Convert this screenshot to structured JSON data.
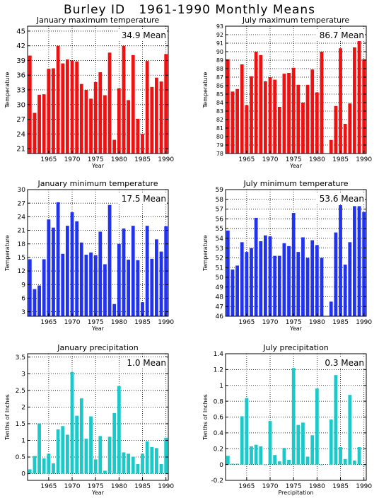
{
  "page_title": "Burley ID   1961-1990 Monthly Means",
  "chart_data": [
    {
      "type": "bar",
      "title": "January maximum temperature",
      "ylabel": "Temperature",
      "xlabel": "Year",
      "mean_label": "34.9 Mean",
      "color": "#ee1111",
      "ylim": [
        20,
        46
      ],
      "yticks": [
        21,
        24,
        27,
        30,
        33,
        36,
        39,
        42,
        45
      ],
      "xticks": [
        1965,
        1970,
        1975,
        1980,
        1985,
        1990
      ],
      "x": [
        1961,
        1962,
        1963,
        1964,
        1965,
        1966,
        1967,
        1968,
        1969,
        1970,
        1971,
        1972,
        1973,
        1974,
        1975,
        1976,
        1977,
        1978,
        1979,
        1980,
        1981,
        1982,
        1983,
        1984,
        1985,
        1986,
        1987,
        1988,
        1989,
        1990
      ],
      "values": [
        40.0,
        28.3,
        32.0,
        32.1,
        37.3,
        37.4,
        42.0,
        38.4,
        39.2,
        39.0,
        38.8,
        34.2,
        33.0,
        31.2,
        34.6,
        36.6,
        31.9,
        40.6,
        22.8,
        33.3,
        42.0,
        30.9,
        40.1,
        27.1,
        24.0,
        38.9,
        33.6,
        35.5,
        34.7,
        40.3
      ]
    },
    {
      "type": "bar",
      "title": "July maximum temperature",
      "ylabel": "Temperature",
      "xlabel": "Year",
      "mean_label": "86.7 Mean",
      "color": "#ee1111",
      "ylim": [
        78,
        93
      ],
      "yticks": [
        78,
        79,
        80,
        81,
        82,
        83,
        84,
        85,
        86,
        87,
        88,
        89,
        90,
        91,
        92,
        93
      ],
      "xticks": [
        1965,
        1970,
        1975,
        1980,
        1985,
        1990
      ],
      "x": [
        1961,
        1962,
        1963,
        1964,
        1965,
        1966,
        1967,
        1968,
        1969,
        1970,
        1971,
        1972,
        1973,
        1974,
        1975,
        1976,
        1977,
        1978,
        1979,
        1980,
        1981,
        1982,
        1983,
        1984,
        1985,
        1986,
        1987,
        1988,
        1989,
        1990
      ],
      "values": [
        89.1,
        85.3,
        85.6,
        88.5,
        83.7,
        87.1,
        90.0,
        89.6,
        86.5,
        87.0,
        86.7,
        83.5,
        87.4,
        87.5,
        88.1,
        86.1,
        84.0,
        86.1,
        87.9,
        85.2,
        90.0,
        null,
        79.6,
        83.6,
        90.4,
        81.5,
        83.9,
        90.5,
        91.9,
        89.1
      ]
    },
    {
      "type": "bar",
      "title": "January minimum temperature",
      "ylabel": "Temperature",
      "xlabel": "Year",
      "mean_label": "17.5 Mean",
      "color": "#2233ee",
      "ylim": [
        2,
        30
      ],
      "yticks": [
        3,
        6,
        9,
        12,
        15,
        18,
        21,
        24,
        27,
        30
      ],
      "xticks": [
        1965,
        1970,
        1975,
        1980,
        1985,
        1990
      ],
      "x": [
        1961,
        1962,
        1963,
        1964,
        1965,
        1966,
        1967,
        1968,
        1969,
        1970,
        1971,
        1972,
        1973,
        1974,
        1975,
        1976,
        1977,
        1978,
        1979,
        1980,
        1981,
        1982,
        1983,
        1984,
        1985,
        1986,
        1987,
        1988,
        1989,
        1990
      ],
      "values": [
        14.6,
        8.0,
        8.8,
        14.6,
        23.4,
        21.6,
        27.2,
        15.8,
        22.0,
        25.0,
        23.0,
        18.3,
        15.6,
        16.1,
        15.5,
        20.7,
        13.5,
        26.6,
        4.7,
        18.0,
        21.4,
        14.5,
        22.0,
        14.4,
        5.1,
        22.0,
        14.7,
        19.0,
        16.3,
        21.9
      ]
    },
    {
      "type": "bar",
      "title": "July minimum temperature",
      "ylabel": "Temperature",
      "xlabel": "Year",
      "mean_label": "53.6 Mean",
      "color": "#2233ee",
      "ylim": [
        46,
        59
      ],
      "yticks": [
        46,
        47,
        48,
        49,
        50,
        51,
        52,
        53,
        54,
        55,
        56,
        57,
        58,
        59
      ],
      "xticks": [
        1965,
        1970,
        1975,
        1980,
        1985,
        1990
      ],
      "x": [
        1961,
        1962,
        1963,
        1964,
        1965,
        1966,
        1967,
        1968,
        1969,
        1970,
        1971,
        1972,
        1973,
        1974,
        1975,
        1976,
        1977,
        1978,
        1979,
        1980,
        1981,
        1982,
        1983,
        1984,
        1985,
        1986,
        1987,
        1988,
        1989,
        1990
      ],
      "values": [
        54.8,
        50.8,
        51.2,
        53.6,
        52.6,
        53.0,
        56.1,
        53.7,
        54.3,
        54.2,
        52.2,
        52.2,
        53.5,
        53.2,
        56.6,
        52.6,
        54.1,
        52.0,
        53.8,
        53.3,
        52.0,
        null,
        47.5,
        54.6,
        57.4,
        51.3,
        53.6,
        57.3,
        57.3,
        56.7
      ]
    },
    {
      "type": "bar",
      "title": "January precipitation",
      "ylabel": "Tenths of Inches",
      "xlabel": "Year",
      "mean_label": "1.0 Mean",
      "color": "#1cc8c8",
      "ylim": [
        -0.2,
        3.6
      ],
      "yticks": [
        0,
        0.5,
        1,
        1.5,
        2,
        2.5,
        3,
        3.5
      ],
      "yticklabels": [
        "0",
        "0.5",
        "1",
        "1.5",
        "2",
        "2.5",
        "3",
        "3.5"
      ],
      "xticks": [
        1965,
        1970,
        1975,
        1980,
        1985,
        1990
      ],
      "x": [
        1961,
        1962,
        1963,
        1964,
        1965,
        1966,
        1967,
        1968,
        1969,
        1970,
        1971,
        1972,
        1973,
        1974,
        1975,
        1976,
        1977,
        1978,
        1979,
        1980,
        1981,
        1982,
        1983,
        1984,
        1985,
        1986,
        1987,
        1988,
        1989,
        1990
      ],
      "values": [
        0.13,
        0.53,
        1.51,
        0.46,
        0.6,
        0.31,
        1.33,
        1.43,
        1.17,
        3.05,
        1.74,
        2.26,
        1.05,
        1.72,
        0.43,
        1.13,
        0.09,
        1.11,
        1.82,
        2.63,
        0.64,
        0.6,
        0.51,
        0.29,
        0.6,
        0.97,
        0.8,
        0.77,
        0.29,
        1.08
      ]
    },
    {
      "type": "bar",
      "title": "July precipitation",
      "ylabel": "Tenths of Inches",
      "xlabel": "Precipitation",
      "mean_label": "0.3 Mean",
      "color": "#1cc8c8",
      "ylim": [
        -0.2,
        1.4
      ],
      "yticks": [
        -0.2,
        0,
        0.2,
        0.4,
        0.6,
        0.8,
        1,
        1.2,
        1.4
      ],
      "yticklabels": [
        "-0.2",
        "0",
        "0.2",
        "0.4",
        "0.6",
        "0.8",
        "1",
        "1.2",
        "1.4"
      ],
      "xticks": [
        1965,
        1970,
        1975,
        1980,
        1985,
        1990
      ],
      "x": [
        1961,
        1962,
        1963,
        1964,
        1965,
        1966,
        1967,
        1968,
        1969,
        1970,
        1971,
        1972,
        1973,
        1974,
        1975,
        1976,
        1977,
        1978,
        1979,
        1980,
        1981,
        1982,
        1983,
        1984,
        1985,
        1986,
        1987,
        1988,
        1989,
        1990
      ],
      "values": [
        0.11,
        0.01,
        0.01,
        0.61,
        0.84,
        0.23,
        0.25,
        0.23,
        0.0,
        0.55,
        0.12,
        0.04,
        0.21,
        0.06,
        1.22,
        0.5,
        0.53,
        0.1,
        0.37,
        0.96,
        0.0,
        null,
        0.57,
        1.13,
        0.22,
        0.07,
        0.88,
        0.05,
        0.22,
        0.0
      ]
    }
  ]
}
